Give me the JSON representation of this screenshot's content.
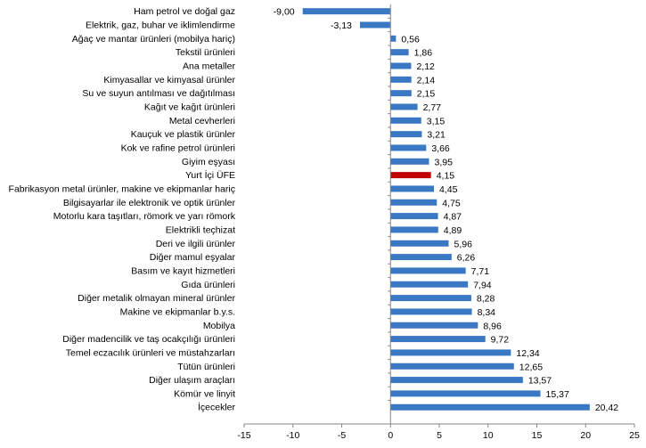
{
  "chart_data": {
    "type": "bar",
    "orientation": "horizontal",
    "categories": [
      "Ham petrol ve doğal gaz",
      "Elektrik, gaz, buhar ve iklimlendirme",
      "Ağaç ve mantar ürünleri (mobilya hariç)",
      "Tekstil ürünleri",
      "Ana metaller",
      "Kimyasallar ve kimyasal ürünler",
      "Su ve suyun antılması ve dağıtılması",
      "Kağıt ve kağıt ürünleri",
      "Metal cevherleri",
      "Kauçuk ve plastik ürünler",
      "Kok ve rafine petrol ürünleri",
      "Giyim eşyası",
      "Yurt İçi ÜFE",
      "Fabrikasyon metal ürünler, makine ve ekipmanlar hariç",
      "Bilgisayarlar ile elektronik ve optik ürünler",
      "Motorlu kara taşıtları, römork ve yarı römork",
      "Elektrikli teçhizat",
      "Deri ve ilgili ürünler",
      "Diğer mamul eşyalar",
      "Basım ve kayıt hizmetleri",
      "Gıda ürünleri",
      "Diğer metalik olmayan mineral ürünler",
      "Makine ve ekipmanlar b.y.s.",
      "Mobilya",
      "Diğer madencilik ve taş ocakçılığı ürünleri",
      "Temel eczacılık ürünleri ve müstahzarları",
      "Tütün ürünleri",
      "Diğer ulaşım araçları",
      "Kömür ve linyit",
      "İçecekler"
    ],
    "values": [
      -9.0,
      -3.13,
      0.56,
      1.86,
      2.12,
      2.14,
      2.15,
      2.77,
      3.15,
      3.21,
      3.66,
      3.95,
      4.15,
      4.45,
      4.75,
      4.87,
      4.89,
      5.96,
      6.26,
      7.71,
      7.94,
      8.28,
      8.34,
      8.96,
      9.72,
      12.34,
      12.65,
      13.57,
      15.37,
      20.42
    ],
    "value_labels": [
      "-9,00",
      "-3,13",
      "0,56",
      "1,86",
      "2,12",
      "2,14",
      "2,15",
      "2,77",
      "3,15",
      "3,21",
      "3,66",
      "3,95",
      "4,15",
      "4,45",
      "4,75",
      "4,87",
      "4,89",
      "5,96",
      "6,26",
      "7,71",
      "7,94",
      "8,28",
      "8,34",
      "8,96",
      "9,72",
      "12,34",
      "12,65",
      "13,57",
      "15,37",
      "20,42"
    ],
    "highlight_category": "Yurt İçi ÜFE",
    "xlim": [
      -15,
      25
    ],
    "x_ticks": [
      -15,
      -10,
      -5,
      0,
      5,
      10,
      15,
      20,
      25
    ],
    "x_tick_labels": [
      "-15",
      "-10",
      "-5",
      "0",
      "5",
      "10",
      "15",
      "20",
      "25"
    ],
    "grid": false,
    "title": "",
    "xlabel": "",
    "ylabel": "",
    "colors": {
      "bar": "#3a78c3",
      "highlight": "#c00000",
      "axis": "#868686"
    }
  }
}
